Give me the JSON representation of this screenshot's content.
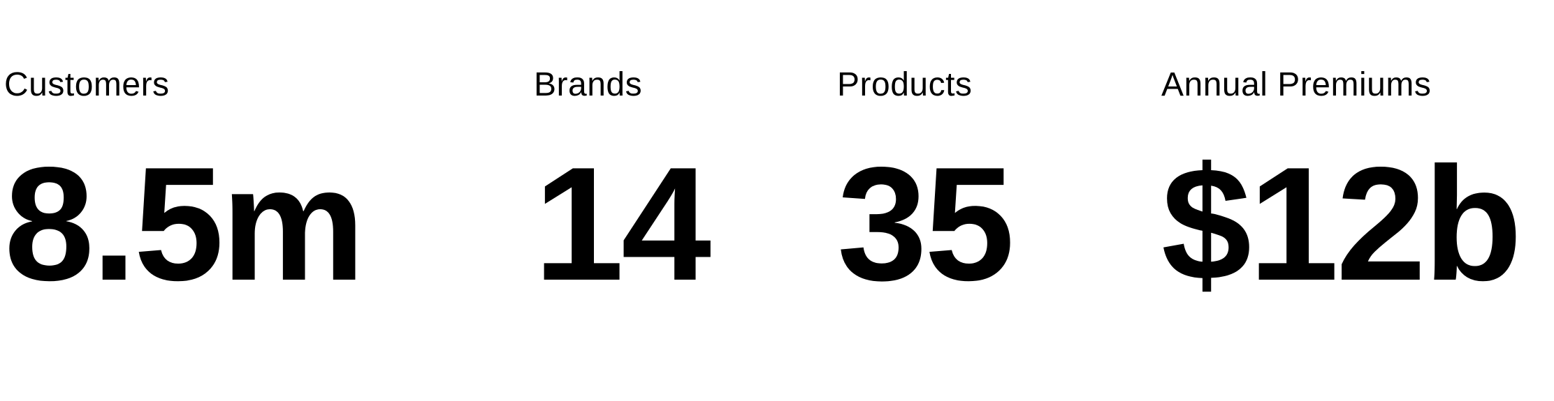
{
  "stats": [
    {
      "label": "Customers",
      "value": "8.5m"
    },
    {
      "label": "Brands",
      "value": "14"
    },
    {
      "label": "Products",
      "value": "35"
    },
    {
      "label": "Annual Premiums",
      "value": "$12b"
    }
  ],
  "colors": {
    "text": "#000000",
    "background": "#ffffff"
  }
}
